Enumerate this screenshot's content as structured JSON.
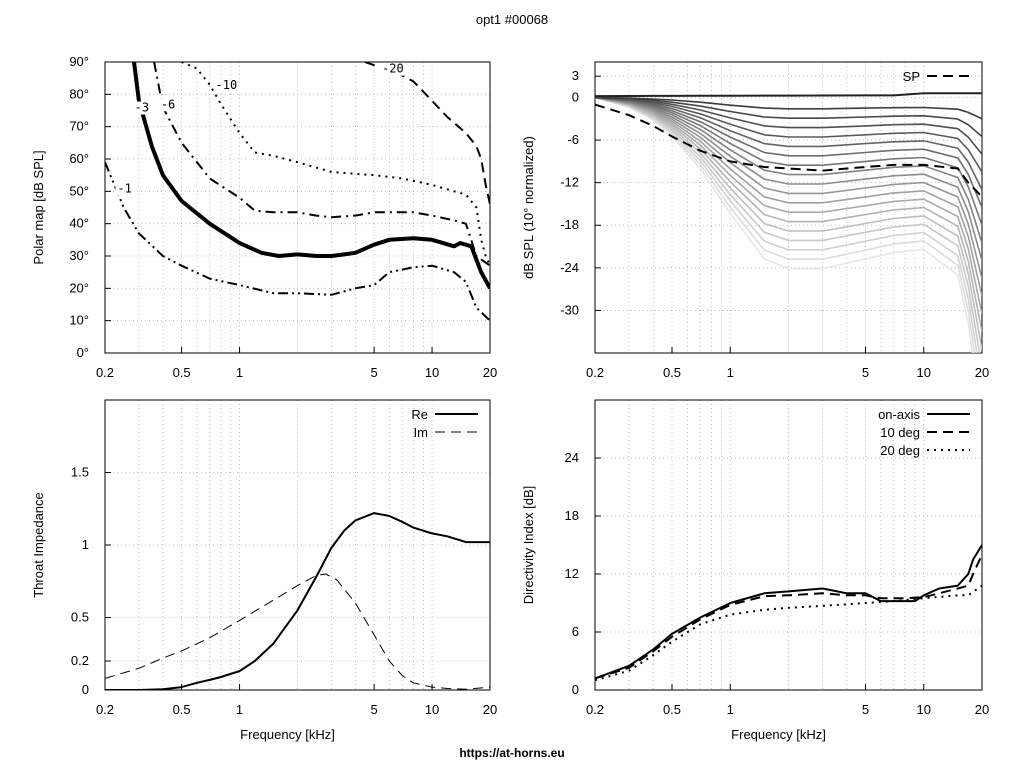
{
  "title": "opt1 #00068",
  "footer": "https://at-horns.eu",
  "chart_data": [
    {
      "id": "polar",
      "type": "line",
      "title": "",
      "xlabel": "",
      "ylabel": "Polar map [dB SPL]",
      "xscale": "log",
      "xlim": [
        0.2,
        20
      ],
      "ylim": [
        0,
        90
      ],
      "xticks": [
        0.2,
        0.5,
        1,
        5,
        10,
        20
      ],
      "xtick_labels": [
        "0.2",
        "0.5",
        "1",
        "5",
        "10",
        "20"
      ],
      "yticks": [
        0,
        10,
        20,
        30,
        40,
        50,
        60,
        70,
        80,
        90
      ],
      "ytick_labels": [
        "0°",
        "10°",
        "20°",
        "30°",
        "40°",
        "50°",
        "60°",
        "70°",
        "80°",
        "90°"
      ],
      "grid": true,
      "contour_labels": [
        {
          "text": "-1",
          "x": 0.232,
          "y": 50
        },
        {
          "text": "-3",
          "x": 0.285,
          "y": 75
        },
        {
          "text": "-6",
          "x": 0.39,
          "y": 76
        },
        {
          "text": "-10",
          "x": 0.75,
          "y": 82
        },
        {
          "text": "-20",
          "x": 5.5,
          "y": 87
        }
      ],
      "series": [
        {
          "name": "-1",
          "style": "dashdotdot",
          "width": 2,
          "x": [
            0.2,
            0.25,
            0.3,
            0.4,
            0.5,
            0.7,
            1,
            1.5,
            2,
            3,
            4,
            5,
            6,
            8,
            10,
            13,
            15,
            17,
            20
          ],
          "y": [
            59,
            45,
            37,
            30,
            27,
            23,
            21,
            18.5,
            18.5,
            18,
            20,
            21,
            25,
            26.5,
            27,
            25,
            22,
            14,
            10
          ]
        },
        {
          "name": "-3",
          "style": "solid",
          "width": 4,
          "x": [
            0.283,
            0.3,
            0.35,
            0.4,
            0.5,
            0.7,
            1,
            1.3,
            1.6,
            2,
            2.5,
            3,
            3.5,
            4,
            5,
            6,
            8,
            10,
            13,
            14,
            16,
            18,
            20
          ],
          "y": [
            90,
            78,
            64,
            55,
            47,
            40,
            34,
            31,
            30,
            30.5,
            30,
            30,
            30.5,
            31,
            33.5,
            35,
            35.5,
            35,
            33,
            34,
            33,
            25,
            20
          ]
        },
        {
          "name": "-6",
          "style": "dashdot",
          "width": 2,
          "x": [
            0.36,
            0.4,
            0.5,
            0.7,
            1,
            1.2,
            1.5,
            2,
            2.5,
            3,
            4,
            5,
            6,
            8,
            10,
            13,
            15,
            17,
            20
          ],
          "y": [
            90,
            76,
            65,
            54,
            48,
            44,
            43.5,
            43.5,
            42.5,
            42,
            42.5,
            43.5,
            43.5,
            43.5,
            42.5,
            41,
            40,
            30,
            27
          ]
        },
        {
          "name": "-10",
          "style": "dotted",
          "width": 2,
          "x": [
            0.5,
            0.6,
            0.7,
            0.8,
            1,
            1.2,
            1.5,
            2,
            3,
            5,
            7,
            10,
            13,
            15,
            17,
            18,
            19,
            20
          ],
          "y": [
            90,
            88,
            83,
            77,
            68,
            62,
            61,
            59,
            56,
            55,
            54,
            52,
            50,
            49,
            45,
            35,
            30,
            27
          ]
        },
        {
          "name": "-20",
          "style": "dashed",
          "width": 2,
          "x": [
            4.5,
            5,
            6,
            8,
            10,
            12,
            15,
            17,
            18,
            19,
            20
          ],
          "y": [
            90,
            89,
            88,
            84,
            78,
            73,
            68,
            64,
            60,
            52,
            46
          ]
        }
      ]
    },
    {
      "id": "spl",
      "type": "line",
      "title": "",
      "xlabel": "",
      "ylabel": "dB SPL (10° normalized)",
      "xscale": "log",
      "xlim": [
        0.2,
        20
      ],
      "ylim": [
        -36,
        5
      ],
      "xticks": [
        0.2,
        0.5,
        1,
        5,
        10,
        20
      ],
      "xtick_labels": [
        "0.2",
        "0.5",
        "1",
        "5",
        "10",
        "20"
      ],
      "yticks": [
        3,
        0,
        -6,
        -12,
        -18,
        -24,
        -30
      ],
      "ytick_labels": [
        "3",
        "0",
        "-6",
        "-12",
        "-18",
        "-24",
        "-30"
      ],
      "grid": true,
      "legend": {
        "entries": [
          "SP"
        ],
        "position": "top-right"
      },
      "series": [
        {
          "name": "SP",
          "style": "dashed",
          "width": 2,
          "x": [
            0.2,
            0.3,
            0.4,
            0.5,
            0.7,
            1,
            1.5,
            2,
            3,
            5,
            7,
            10,
            15,
            17,
            20
          ],
          "y": [
            -1,
            -2.5,
            -4,
            -5.5,
            -7.5,
            -9,
            -9.8,
            -10,
            -10.3,
            -9.8,
            -9.5,
            -9.5,
            -10,
            -12,
            -14
          ]
        }
      ],
      "family": {
        "count": 18,
        "base_x": [
          0.2,
          0.3,
          0.4,
          0.5,
          0.7,
          1,
          1.5,
          2,
          3,
          5,
          7,
          10,
          15,
          17,
          20
        ],
        "base_y": [
          0,
          -0.3,
          -0.7,
          -1.2,
          -2.2,
          -3.6,
          -5,
          -5.3,
          -5.3,
          -5,
          -4.8,
          -4.7,
          -5.5,
          -7,
          -10
        ]
      }
    },
    {
      "id": "impedance",
      "type": "line",
      "title": "",
      "xlabel": "Frequency [kHz]",
      "ylabel": "Throat Impedance",
      "xscale": "log",
      "xlim": [
        0.2,
        20
      ],
      "ylim": [
        0,
        2
      ],
      "xticks": [
        0.2,
        0.5,
        1,
        5,
        10,
        20
      ],
      "xtick_labels": [
        "0.2",
        "0.5",
        "1",
        "5",
        "10",
        "20"
      ],
      "yticks": [
        0,
        0.2,
        0.5,
        1,
        1.5
      ],
      "ytick_labels": [
        "0",
        "0.2",
        "0.5",
        "1",
        "1.5"
      ],
      "grid": true,
      "legend": {
        "entries": [
          "Re",
          "Im"
        ],
        "position": "top-right"
      },
      "series": [
        {
          "name": "Re",
          "style": "solid",
          "width": 2,
          "x": [
            0.2,
            0.3,
            0.4,
            0.5,
            0.6,
            0.7,
            0.8,
            1,
            1.2,
            1.5,
            2,
            2.5,
            3,
            3.5,
            4,
            5,
            6,
            7,
            8,
            10,
            12,
            15,
            17,
            20
          ],
          "y": [
            0,
            0,
            0.005,
            0.02,
            0.05,
            0.07,
            0.09,
            0.13,
            0.2,
            0.32,
            0.55,
            0.78,
            0.98,
            1.1,
            1.17,
            1.22,
            1.2,
            1.16,
            1.12,
            1.08,
            1.06,
            1.02,
            1.02,
            1.02
          ]
        },
        {
          "name": "Im",
          "style": "dashed",
          "width": 1,
          "x": [
            0.2,
            0.3,
            0.4,
            0.5,
            0.7,
            1,
            1.5,
            2,
            2.5,
            2.8,
            3.2,
            4,
            5,
            6,
            7,
            8,
            10,
            12,
            15,
            20
          ],
          "y": [
            0.08,
            0.15,
            0.22,
            0.27,
            0.36,
            0.48,
            0.62,
            0.72,
            0.79,
            0.8,
            0.76,
            0.6,
            0.38,
            0.2,
            0.1,
            0.05,
            0.02,
            0.01,
            0.005,
            0.02
          ]
        }
      ]
    },
    {
      "id": "di",
      "type": "line",
      "title": "",
      "xlabel": "Frequency [kHz]",
      "ylabel": "Directivity Index [dB]",
      "xscale": "log",
      "xlim": [
        0.2,
        20
      ],
      "ylim": [
        0,
        30
      ],
      "xticks": [
        0.2,
        0.5,
        1,
        5,
        10,
        20
      ],
      "xtick_labels": [
        "0.2",
        "0.5",
        "1",
        "5",
        "10",
        "20"
      ],
      "yticks": [
        0,
        6,
        12,
        18,
        24
      ],
      "ytick_labels": [
        "0",
        "6",
        "12",
        "18",
        "24"
      ],
      "grid": true,
      "legend": {
        "entries": [
          "on-axis",
          "10 deg",
          "20 deg"
        ],
        "position": "top-right"
      },
      "series": [
        {
          "name": "on-axis",
          "style": "solid",
          "width": 2,
          "x": [
            0.2,
            0.3,
            0.4,
            0.5,
            0.7,
            1,
            1.5,
            2,
            3,
            4,
            5,
            6,
            7,
            8,
            9,
            10,
            12,
            15,
            17,
            18,
            20
          ],
          "y": [
            1.2,
            2.5,
            4.2,
            5.8,
            7.5,
            9,
            10,
            10.2,
            10.5,
            10,
            10,
            9.2,
            9.2,
            9.2,
            9.2,
            9.8,
            10.5,
            10.8,
            12,
            13.5,
            15
          ]
        },
        {
          "name": "10 deg",
          "style": "dashed",
          "width": 2,
          "x": [
            0.2,
            0.3,
            0.4,
            0.5,
            0.7,
            1,
            1.5,
            2,
            3,
            4,
            5,
            6,
            8,
            10,
            12,
            15,
            17,
            18,
            20
          ],
          "y": [
            1.2,
            2.3,
            4,
            5.5,
            7.3,
            8.8,
            9.7,
            9.8,
            10,
            9.8,
            9.8,
            9.5,
            9.5,
            9.6,
            10,
            10.5,
            10.8,
            12,
            14
          ]
        },
        {
          "name": "20 deg",
          "style": "dotted",
          "width": 2,
          "x": [
            0.2,
            0.3,
            0.4,
            0.5,
            0.7,
            1,
            1.5,
            2,
            3,
            5,
            7,
            10,
            15,
            17,
            20
          ],
          "y": [
            1,
            2,
            3.6,
            5,
            6.8,
            7.8,
            8.3,
            8.5,
            8.7,
            9,
            9.2,
            9.5,
            9.8,
            9.8,
            10.8
          ]
        }
      ]
    }
  ]
}
